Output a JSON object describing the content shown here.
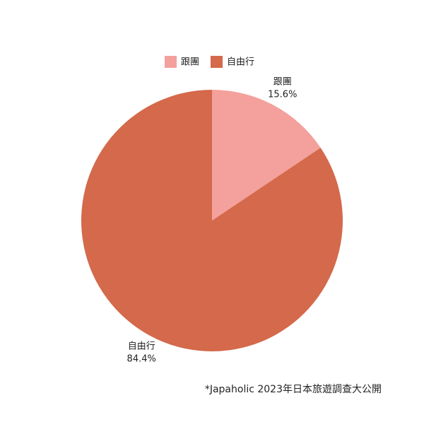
{
  "chart_data": {
    "type": "pie",
    "categories": [
      "跟團",
      "自由行"
    ],
    "values": [
      15.6,
      84.4
    ],
    "value_labels": [
      "15.6%",
      "84.4%"
    ],
    "colors": [
      "#f4a09c",
      "#d4694b"
    ],
    "note": "*Japaholic 2023年日本旅遊調查大公開"
  }
}
